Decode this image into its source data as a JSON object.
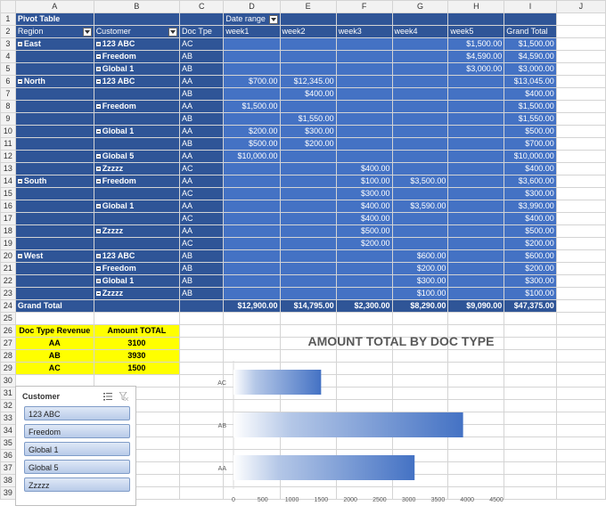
{
  "columns": [
    "A",
    "B",
    "C",
    "D",
    "E",
    "F",
    "G",
    "H",
    "I",
    "J"
  ],
  "pivot": {
    "title": "Pivot Table",
    "filter_label": "Date range",
    "headers": [
      "Region",
      "Customer",
      "Doc Tpe",
      "week1",
      "week2",
      "week3",
      "week4",
      "week5",
      "Grand Total"
    ],
    "rows": [
      {
        "r": "3",
        "region": "East",
        "customer": "123 ABC",
        "doc": "AC",
        "w": [
          "",
          "",
          "",
          "",
          "$1,500.00"
        ],
        "gt": "$1,500.00"
      },
      {
        "r": "4",
        "region": "",
        "customer": "Freedom",
        "doc": "AB",
        "w": [
          "",
          "",
          "",
          "",
          "$4,590.00"
        ],
        "gt": "$4,590.00"
      },
      {
        "r": "5",
        "region": "",
        "customer": "Global 1",
        "doc": "AB",
        "w": [
          "",
          "",
          "",
          "",
          "$3,000.00"
        ],
        "gt": "$3,000.00"
      },
      {
        "r": "6",
        "region": "North",
        "customer": "123 ABC",
        "doc": "AA",
        "w": [
          "$700.00",
          "$12,345.00",
          "",
          "",
          ""
        ],
        "gt": "$13,045.00"
      },
      {
        "r": "7",
        "region": "",
        "customer": "",
        "doc": "AB",
        "w": [
          "",
          "$400.00",
          "",
          "",
          ""
        ],
        "gt": "$400.00"
      },
      {
        "r": "8",
        "region": "",
        "customer": "Freedom",
        "doc": "AA",
        "w": [
          "$1,500.00",
          "",
          "",
          "",
          ""
        ],
        "gt": "$1,500.00"
      },
      {
        "r": "9",
        "region": "",
        "customer": "",
        "doc": "AB",
        "w": [
          "",
          "$1,550.00",
          "",
          "",
          ""
        ],
        "gt": "$1,550.00"
      },
      {
        "r": "10",
        "region": "",
        "customer": "Global 1",
        "doc": "AA",
        "w": [
          "$200.00",
          "$300.00",
          "",
          "",
          ""
        ],
        "gt": "$500.00"
      },
      {
        "r": "11",
        "region": "",
        "customer": "",
        "doc": "AB",
        "w": [
          "$500.00",
          "$200.00",
          "",
          "",
          ""
        ],
        "gt": "$700.00"
      },
      {
        "r": "12",
        "region": "",
        "customer": "Global 5",
        "doc": "AA",
        "w": [
          "$10,000.00",
          "",
          "",
          "",
          ""
        ],
        "gt": "$10,000.00"
      },
      {
        "r": "13",
        "region": "",
        "customer": "Zzzzz",
        "doc": "AC",
        "w": [
          "",
          "",
          "$400.00",
          "",
          ""
        ],
        "gt": "$400.00"
      },
      {
        "r": "14",
        "region": "South",
        "customer": "Freedom",
        "doc": "AA",
        "w": [
          "",
          "",
          "$100.00",
          "$3,500.00",
          ""
        ],
        "gt": "$3,600.00"
      },
      {
        "r": "15",
        "region": "",
        "customer": "",
        "doc": "AC",
        "w": [
          "",
          "",
          "$300.00",
          "",
          ""
        ],
        "gt": "$300.00"
      },
      {
        "r": "16",
        "region": "",
        "customer": "Global 1",
        "doc": "AA",
        "w": [
          "",
          "",
          "$400.00",
          "$3,590.00",
          ""
        ],
        "gt": "$3,990.00"
      },
      {
        "r": "17",
        "region": "",
        "customer": "",
        "doc": "AC",
        "w": [
          "",
          "",
          "$400.00",
          "",
          ""
        ],
        "gt": "$400.00"
      },
      {
        "r": "18",
        "region": "",
        "customer": "Zzzzz",
        "doc": "AA",
        "w": [
          "",
          "",
          "$500.00",
          "",
          ""
        ],
        "gt": "$500.00"
      },
      {
        "r": "19",
        "region": "",
        "customer": "",
        "doc": "AC",
        "w": [
          "",
          "",
          "$200.00",
          "",
          ""
        ],
        "gt": "$200.00"
      },
      {
        "r": "20",
        "region": "West",
        "customer": "123 ABC",
        "doc": "AB",
        "w": [
          "",
          "",
          "",
          "$600.00",
          ""
        ],
        "gt": "$600.00"
      },
      {
        "r": "21",
        "region": "",
        "customer": "Freedom",
        "doc": "AB",
        "w": [
          "",
          "",
          "",
          "$200.00",
          ""
        ],
        "gt": "$200.00"
      },
      {
        "r": "22",
        "region": "",
        "customer": "Global 1",
        "doc": "AB",
        "w": [
          "",
          "",
          "",
          "$300.00",
          ""
        ],
        "gt": "$300.00"
      },
      {
        "r": "23",
        "region": "",
        "customer": "Zzzzz",
        "doc": "AB",
        "w": [
          "",
          "",
          "",
          "$100.00",
          ""
        ],
        "gt": "$100.00"
      }
    ],
    "grand_total": {
      "label": "Grand Total",
      "w": [
        "$12,900.00",
        "$14,795.00",
        "$2,300.00",
        "$8,290.00",
        "$9,090.00"
      ],
      "gt": "$47,375.00"
    }
  },
  "revenue_table": {
    "headers": [
      "Doc Type Revenue",
      "Amount TOTAL"
    ],
    "rows": [
      [
        "AA",
        "3100"
      ],
      [
        "AB",
        "3930"
      ],
      [
        "AC",
        "1500"
      ]
    ]
  },
  "extra_rows": [
    "25",
    "26",
    "27",
    "28",
    "29",
    "30",
    "31",
    "32",
    "33",
    "34",
    "35",
    "36",
    "37",
    "38",
    "39"
  ],
  "slicer": {
    "title": "Customer",
    "items": [
      "123 ABC",
      "Freedom",
      "Global 1",
      "Global 5",
      "Zzzzz"
    ]
  },
  "chart_data": {
    "type": "bar",
    "orientation": "horizontal",
    "title": "AMOUNT TOTAL BY DOC TYPE",
    "categories": [
      "AC",
      "AB",
      "AA"
    ],
    "values": [
      1500,
      3930,
      3100
    ],
    "xlim": [
      0,
      4500
    ],
    "xticks": [
      0,
      500,
      1000,
      1500,
      2000,
      2500,
      3000,
      3500,
      4000,
      4500
    ],
    "grid": false,
    "legend": "none",
    "bar_color": "#4472c4"
  }
}
